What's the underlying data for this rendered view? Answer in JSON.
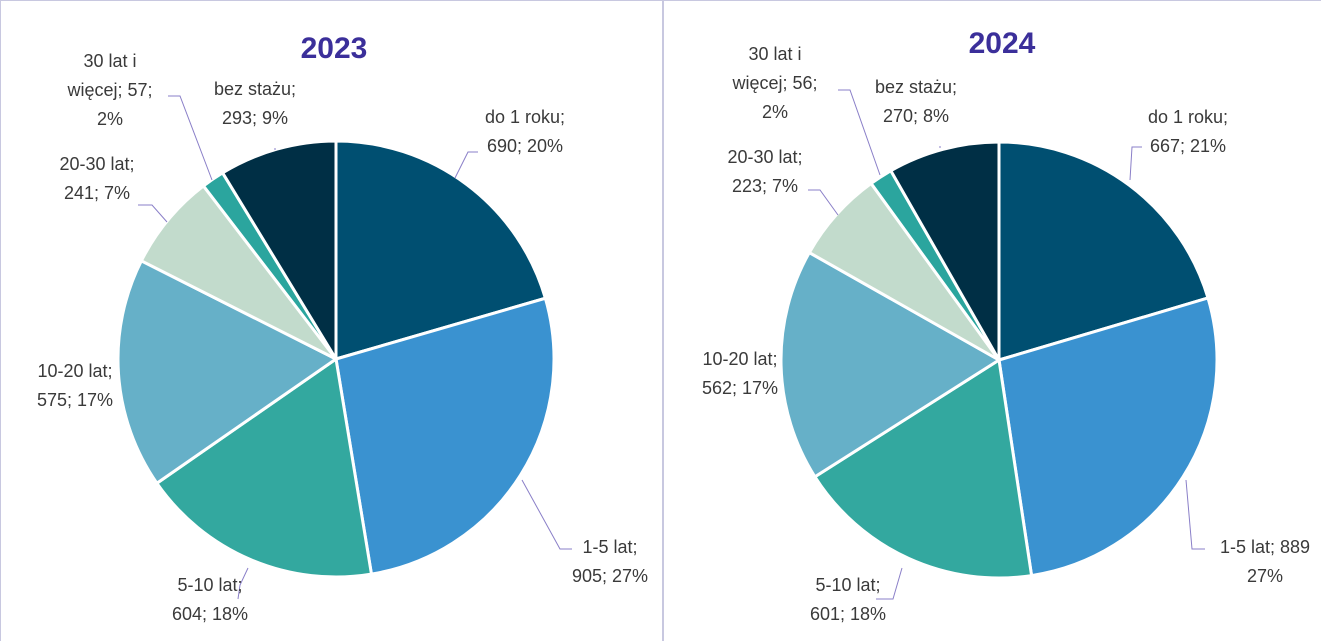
{
  "chart_data": [
    {
      "type": "pie",
      "title": "2023",
      "categories": [
        "do 1 roku",
        "1-5 lat",
        "5-10 lat",
        "10-20 lat",
        "20-30 lat",
        "30 lat i więcej",
        "bez stażu"
      ],
      "values": [
        690,
        905,
        604,
        575,
        241,
        57,
        293
      ],
      "colors": [
        "#004f71",
        "#3a92d0",
        "#33a89f",
        "#66b0c8",
        "#c2dbcc",
        "#2ba59e",
        "#002f45"
      ],
      "value_labels": [
        [
          "do 1 roku;",
          "690; 20%"
        ],
        [
          "1-5 lat;",
          "905; 27%"
        ],
        [
          "5-10 lat;",
          "604; 18%"
        ],
        [
          "10-20 lat;",
          "575; 17%"
        ],
        [
          "20-30 lat;",
          "241; 7%"
        ],
        [
          "30 lat i",
          "więcej; 57;",
          "2%"
        ],
        [
          "bez stażu;",
          "293; 9%"
        ]
      ]
    },
    {
      "type": "pie",
      "title": "2024",
      "categories": [
        "do 1 roku",
        "1-5 lat",
        "5-10 lat",
        "10-20 lat",
        "20-30 lat",
        "30 lat i więcej",
        "bez stażu"
      ],
      "values": [
        667,
        889,
        601,
        562,
        223,
        56,
        270
      ],
      "colors": [
        "#004f71",
        "#3a92d0",
        "#33a89f",
        "#66b0c8",
        "#c2dbcc",
        "#2ba59e",
        "#002f45"
      ],
      "value_labels": [
        [
          "do 1 roku;",
          "667; 21%"
        ],
        [
          "1-5 lat; 889",
          "27%"
        ],
        [
          "5-10 lat;",
          "601; 18%"
        ],
        [
          "10-20 lat;",
          "562; 17%"
        ],
        [
          "20-30 lat;",
          "223; 7%"
        ],
        [
          "30 lat i",
          "więcej; 56;",
          "2%"
        ],
        [
          "bez stażu;",
          "270; 8%"
        ]
      ]
    }
  ]
}
